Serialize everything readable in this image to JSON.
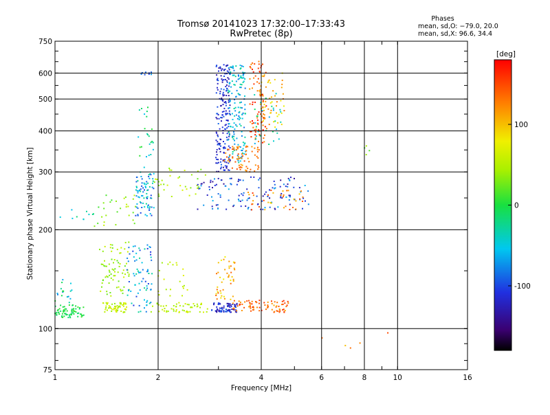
{
  "chart_data": {
    "type": "scatter",
    "title": "Tromsø 20141023 17:32:00–17:33:43",
    "subtitle": "RwPretec (8p)",
    "xlabel": "Frequency [MHz]",
    "ylabel": "Stationary phase Virtual Height [km]",
    "x_scale": "log",
    "y_scale": "log",
    "xlim": [
      1,
      16
    ],
    "ylim": [
      75,
      750
    ],
    "x_ticks": [
      1,
      2,
      4,
      6,
      8,
      10,
      16
    ],
    "x_tick_labels": [
      "1",
      "2",
      "4",
      "6",
      "8",
      "10",
      "16"
    ],
    "y_ticks": [
      75,
      100,
      200,
      300,
      400,
      500,
      600,
      750
    ],
    "y_tick_labels": [
      "75",
      "100",
      "200",
      "300",
      "400",
      "500",
      "600",
      "750"
    ],
    "grid": true,
    "phases": {
      "heading": "Phases",
      "line_o": "mean, sd,O: −79.0, 20.0",
      "line_x": "mean, sd,X:  96.6, 34.4"
    },
    "colorbar": {
      "label": "[deg]",
      "range": [
        -180,
        180
      ],
      "ticks": [
        100,
        0,
        -100
      ],
      "tick_labels": [
        "100",
        "0",
        "-100"
      ]
    },
    "clusters": [
      {
        "f": [
          1.0,
          1.22
        ],
        "h": [
          108,
          118
        ],
        "p": [
          -20,
          15
        ],
        "n": 70
      },
      {
        "f": [
          1.0,
          1.12
        ],
        "h": [
          120,
          142
        ],
        "p": [
          -90,
          10
        ],
        "n": 18
      },
      {
        "f": [
          1.38,
          1.62
        ],
        "h": [
          112,
          120
        ],
        "p": [
          35,
          75
        ],
        "n": 60
      },
      {
        "f": [
          1.35,
          1.65
        ],
        "h": [
          125,
          185
        ],
        "p": [
          20,
          65
        ],
        "n": 75
      },
      {
        "f": [
          1.62,
          1.92
        ],
        "h": [
          112,
          180
        ],
        "p": [
          -110,
          -20
        ],
        "n": 75
      },
      {
        "f": [
          1.9,
          2.8
        ],
        "h": [
          112,
          120
        ],
        "p": [
          35,
          70
        ],
        "n": 55
      },
      {
        "f": [
          2.0,
          2.45
        ],
        "h": [
          125,
          160
        ],
        "p": [
          40,
          75
        ],
        "n": 22
      },
      {
        "f": [
          2.85,
          3.4
        ],
        "h": [
          112,
          120
        ],
        "p": [
          -145,
          -90
        ],
        "n": 70
      },
      {
        "f": [
          2.95,
          3.35
        ],
        "h": [
          122,
          170
        ],
        "p": [
          75,
          140
        ],
        "n": 45
      },
      {
        "f": [
          3.3,
          4.8
        ],
        "h": [
          112,
          122
        ],
        "p": [
          105,
          165
        ],
        "n": 80
      },
      {
        "f": [
          1.3,
          1.75
        ],
        "h": [
          205,
          265
        ],
        "p": [
          10,
          60
        ],
        "n": 28
      },
      {
        "f": [
          1.72,
          1.95
        ],
        "h": [
          220,
          300
        ],
        "p": [
          -105,
          -20
        ],
        "n": 80
      },
      {
        "f": [
          1.75,
          1.95
        ],
        "h": [
          300,
          480
        ],
        "p": [
          -60,
          20
        ],
        "n": 25
      },
      {
        "f": [
          1.75,
          1.92
        ],
        "h": [
          590,
          605
        ],
        "p": [
          -110,
          -70
        ],
        "n": 10
      },
      {
        "f": [
          1.95,
          2.8
        ],
        "h": [
          250,
          310
        ],
        "p": [
          25,
          70
        ],
        "n": 35
      },
      {
        "f": [
          2.6,
          5.5
        ],
        "h": [
          230,
          290
        ],
        "p": [
          -145,
          -60
        ],
        "n": 130
      },
      {
        "f": [
          3.6,
          5.3
        ],
        "h": [
          230,
          265
        ],
        "p": [
          90,
          160
        ],
        "n": 35
      },
      {
        "f": [
          2.95,
          3.25
        ],
        "h": [
          300,
          640
        ],
        "p": [
          -140,
          -90
        ],
        "n": 190
      },
      {
        "f": [
          3.2,
          3.6
        ],
        "h": [
          320,
          640
        ],
        "p": [
          -90,
          -20
        ],
        "n": 150
      },
      {
        "f": [
          3.1,
          3.95
        ],
        "h": [
          300,
          360
        ],
        "p": [
          110,
          150
        ],
        "n": 70
      },
      {
        "f": [
          3.7,
          4.15
        ],
        "h": [
          360,
          660
        ],
        "p": [
          115,
          175
        ],
        "n": 85
      },
      {
        "f": [
          3.95,
          4.7
        ],
        "h": [
          410,
          600
        ],
        "p": [
          70,
          130
        ],
        "n": 55
      },
      {
        "f": [
          3.75,
          4.6
        ],
        "h": [
          360,
          520
        ],
        "p": [
          -70,
          -10
        ],
        "n": 30
      },
      {
        "f": [
          1.0,
          1.3
        ],
        "h": [
          215,
          230
        ],
        "p": [
          -60,
          -10
        ],
        "n": 10
      },
      {
        "f": [
          5.5,
          9.5
        ],
        "h": [
          85,
          100
        ],
        "p": [
          100,
          160
        ],
        "n": 5
      },
      {
        "f": [
          7.9,
          8.3
        ],
        "h": [
          330,
          360
        ],
        "p": [
          10,
          50
        ],
        "n": 4
      }
    ]
  }
}
